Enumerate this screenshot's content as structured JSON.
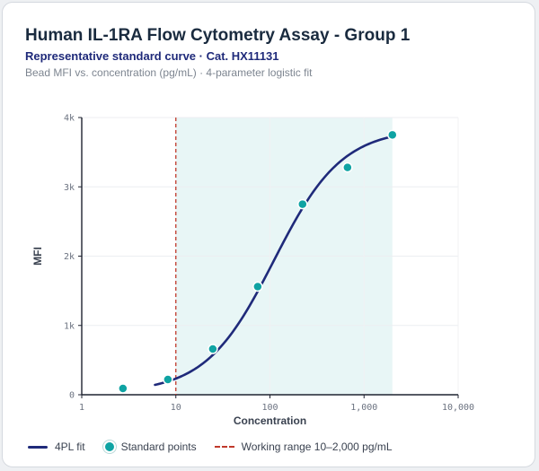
{
  "header": {
    "title": "Human IL-1RA Flow Cytometry Assay - Group 1",
    "subtitle": "Representative standard curve · Cat. HX11131",
    "description": "Bead MFI vs. concentration (pg/mL) · 4-parameter logistic fit"
  },
  "colors": {
    "curve": "#1f2a7a",
    "points": "#0fa3a3",
    "range_line": "#c0392b",
    "range_fill": "#e8f6f6"
  },
  "legend": {
    "fit_label": "4PL fit",
    "points_label": "Standard points",
    "range_label": "Working range 10–2,000 pg/mL"
  },
  "chart_data": {
    "type": "scatter",
    "xlabel": "Concentration",
    "ylabel": "MFI",
    "xscale": "log",
    "xlim": [
      1,
      10000
    ],
    "ylim": [
      0,
      4000
    ],
    "x_ticks": [
      1,
      10,
      100,
      1000,
      10000
    ],
    "x_tick_labels": [
      "1",
      "10",
      "100",
      "1,000",
      "10,000"
    ],
    "y_ticks": [
      0,
      1000,
      2000,
      3000,
      4000
    ],
    "y_tick_labels": [
      "0",
      "1k",
      "2k",
      "3k",
      "4k"
    ],
    "grid": true,
    "legend_position": "bottom",
    "series": [
      {
        "name": "Standard points",
        "type": "scatter",
        "x": [
          2.74,
          8.23,
          24.7,
          74.1,
          222,
          667,
          2000
        ],
        "y": [
          90,
          220,
          660,
          1560,
          2750,
          3280,
          3750
        ]
      },
      {
        "name": "4PL fit",
        "type": "line",
        "fit": {
          "model": "4PL",
          "bottom": 30,
          "top": 3840,
          "ec50": 110,
          "hill": 1.2
        },
        "x_range": [
          6,
          2000
        ]
      }
    ],
    "working_range": {
      "low": 10,
      "high": 2000,
      "label": "Working range 10–2,000 pg/mL"
    }
  }
}
